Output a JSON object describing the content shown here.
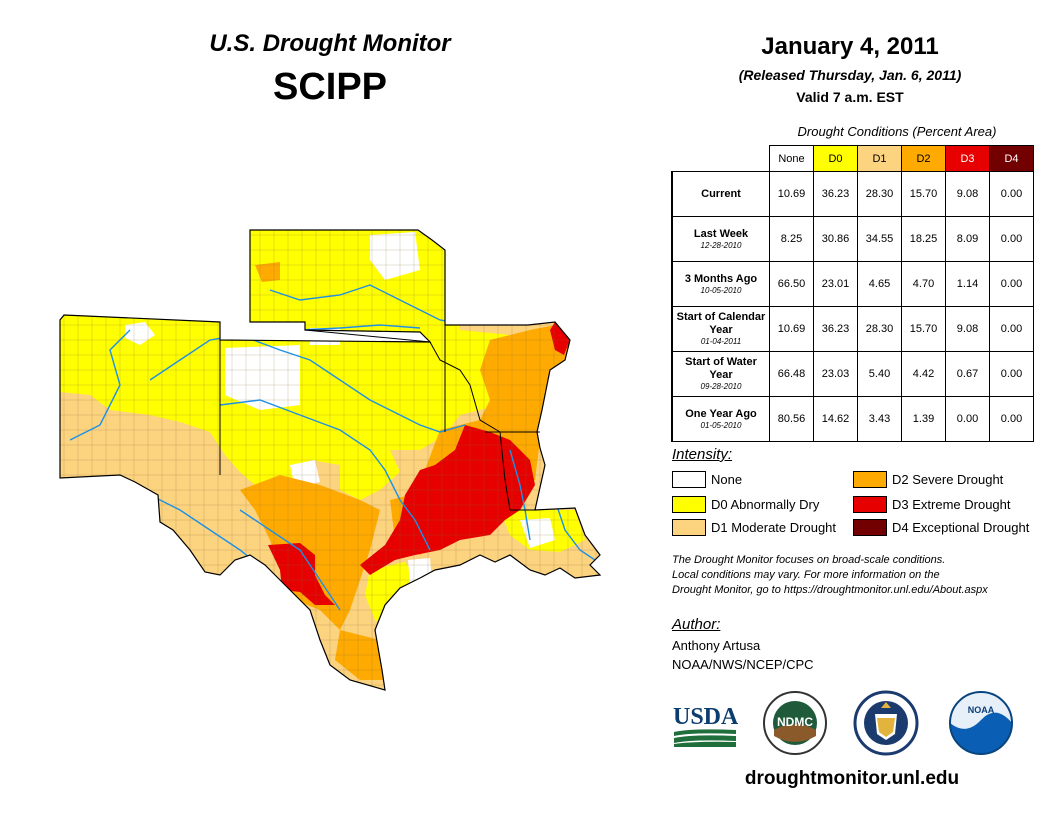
{
  "map": {
    "title": "U.S. Drought Monitor",
    "region": "SCIPP"
  },
  "header": {
    "date": "January 4, 2011",
    "released": "(Released Thursday, Jan. 6, 2011)",
    "valid": "Valid 7 a.m. EST"
  },
  "table": {
    "caption": "Drought Conditions (Percent Area)",
    "columns": [
      "None",
      "D0",
      "D1",
      "D2",
      "D3",
      "D4"
    ],
    "column_colors": [
      "#ffffff",
      "#ffff00",
      "#fcd37f",
      "#ffaa00",
      "#e60000",
      "#730000"
    ],
    "rows": [
      {
        "label": "Current",
        "sub": "",
        "values": [
          "10.69",
          "36.23",
          "28.30",
          "15.70",
          "9.08",
          "0.00"
        ]
      },
      {
        "label": "Last Week",
        "sub": "12-28-2010",
        "values": [
          "8.25",
          "30.86",
          "34.55",
          "18.25",
          "8.09",
          "0.00"
        ]
      },
      {
        "label": "3 Months Ago",
        "sub": "10-05-2010",
        "values": [
          "66.50",
          "23.01",
          "4.65",
          "4.70",
          "1.14",
          "0.00"
        ]
      },
      {
        "label": "Start of Calendar Year",
        "sub": "01-04-2011",
        "values": [
          "10.69",
          "36.23",
          "28.30",
          "15.70",
          "9.08",
          "0.00"
        ]
      },
      {
        "label": "Start of Water Year",
        "sub": "09-28-2010",
        "values": [
          "66.48",
          "23.03",
          "5.40",
          "4.42",
          "0.67",
          "0.00"
        ]
      },
      {
        "label": "One Year Ago",
        "sub": "01-05-2010",
        "values": [
          "80.56",
          "14.62",
          "3.43",
          "1.39",
          "0.00",
          "0.00"
        ]
      }
    ]
  },
  "legend": {
    "title": "Intensity:",
    "items": [
      {
        "label": "None",
        "color": "#ffffff"
      },
      {
        "label": "D0 Abnormally Dry",
        "color": "#ffff00"
      },
      {
        "label": "D1 Moderate Drought",
        "color": "#fcd37f"
      },
      {
        "label": "D2 Severe Drought",
        "color": "#ffaa00"
      },
      {
        "label": "D3 Extreme Drought",
        "color": "#e60000"
      },
      {
        "label": "D4 Exceptional Drought",
        "color": "#730000"
      }
    ]
  },
  "note": {
    "line1": "The Drought Monitor focuses on broad-scale conditions.",
    "line2": "Local conditions may vary. For more information on the",
    "line3": "Drought Monitor, go to https://droughtmonitor.unl.edu/About.aspx"
  },
  "author": {
    "title": "Author:",
    "name": "Anthony Artusa",
    "org": "NOAA/NWS/NCEP/CPC"
  },
  "logos": {
    "usda": "USDA",
    "ndmc": "NDMC",
    "noaa": "NOAA"
  },
  "footer": {
    "site": "droughtmonitor.unl.edu"
  }
}
